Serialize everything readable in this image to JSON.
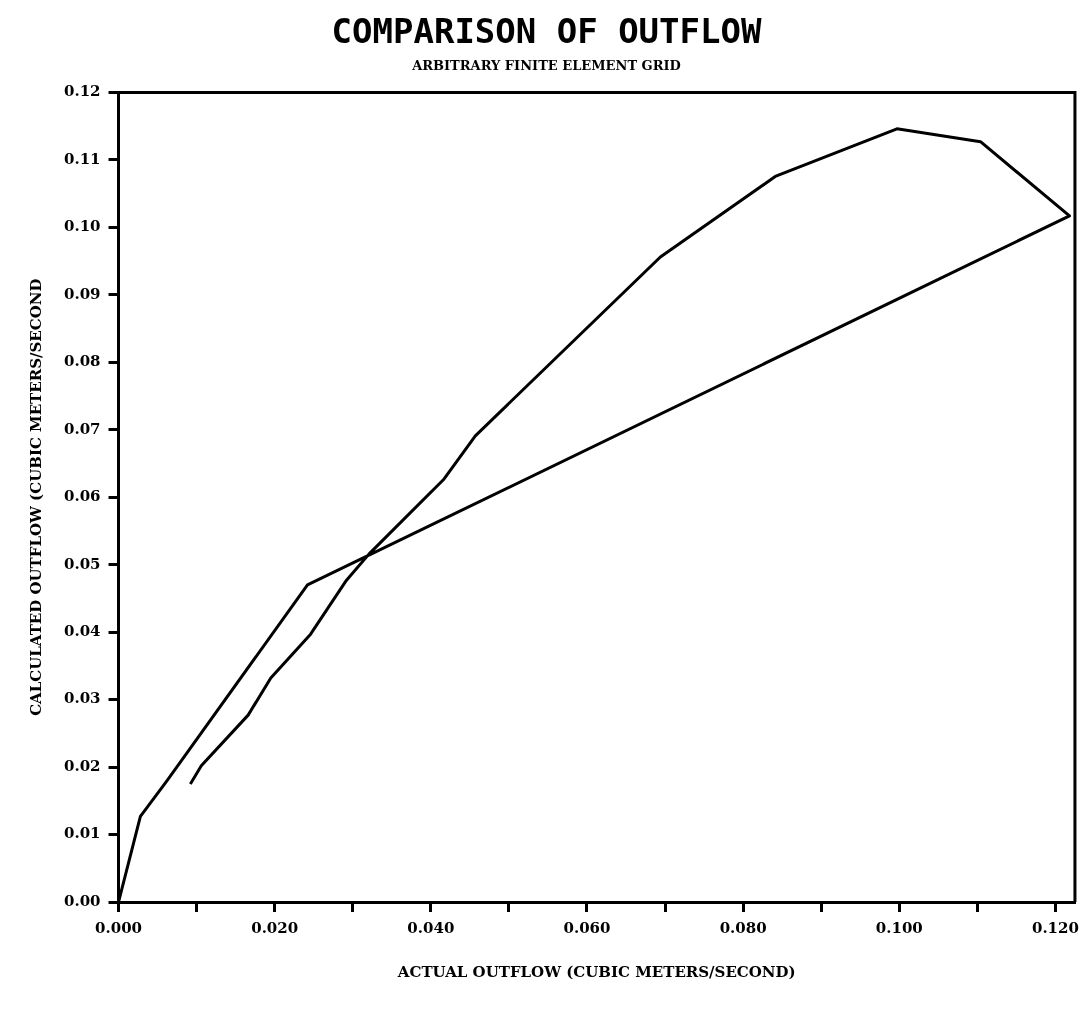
{
  "chart_data": {
    "type": "line",
    "title": "COMPARISON OF OUTFLOW",
    "subtitle": "ARBITRARY FINITE ELEMENT GRID",
    "xlabel": "ACTUAL OUTFLOW (CUBIC METERS/SECOND)",
    "ylabel": "CALCULATED OUTFLOW (CUBIC METERS/SECOND",
    "x": [
      0,
      0.0028,
      0.0061,
      0.0242,
      0.1218,
      0.1104,
      0.0997,
      0.0842,
      0.0694,
      0.0457,
      0.0417,
      0.0321,
      0.0292,
      0.0246,
      0.0195,
      0.0166,
      0.0106,
      0.0092
    ],
    "series": [
      {
        "color": "#000000",
        "values": [
          0,
          0.0127,
          0.0178,
          0.047,
          0.1017,
          0.1127,
          0.1146,
          0.1076,
          0.0956,
          0.0691,
          0.0627,
          0.0516,
          0.0477,
          0.0397,
          0.0332,
          0.0277,
          0.0202,
          0.0175
        ]
      }
    ],
    "xlim": [
      0,
      0.1225
    ],
    "ylim": [
      0,
      0.12
    ],
    "xticks": [
      {
        "value": 0,
        "label": "0.000"
      },
      {
        "value": 0.01,
        "label": null
      },
      {
        "value": 0.02,
        "label": "0.020"
      },
      {
        "value": 0.03,
        "label": null
      },
      {
        "value": 0.04,
        "label": "0.040"
      },
      {
        "value": 0.05,
        "label": null
      },
      {
        "value": 0.06,
        "label": "0.060"
      },
      {
        "value": 0.07,
        "label": null
      },
      {
        "value": 0.08,
        "label": "0.080"
      },
      {
        "value": 0.09,
        "label": null
      },
      {
        "value": 0.1,
        "label": "0.100"
      },
      {
        "value": 0.11,
        "label": null
      },
      {
        "value": 0.12,
        "label": "0.120"
      }
    ],
    "yticks": [
      {
        "value": 0,
        "label": "0.00"
      },
      {
        "value": 0.01,
        "label": "0.01"
      },
      {
        "value": 0.02,
        "label": "0.02"
      },
      {
        "value": 0.03,
        "label": "0.03"
      },
      {
        "value": 0.04,
        "label": "0.04"
      },
      {
        "value": 0.05,
        "label": "0.05"
      },
      {
        "value": 0.06,
        "label": "0.06"
      },
      {
        "value": 0.07,
        "label": "0.07"
      },
      {
        "value": 0.08,
        "label": "0.08"
      },
      {
        "value": 0.09,
        "label": "0.09"
      },
      {
        "value": 0.1,
        "label": "0.10"
      },
      {
        "value": 0.11,
        "label": "0.11"
      },
      {
        "value": 0.12,
        "label": "0.12"
      }
    ],
    "grid": false,
    "legend": false,
    "marker": "none",
    "line_style": "solid"
  }
}
